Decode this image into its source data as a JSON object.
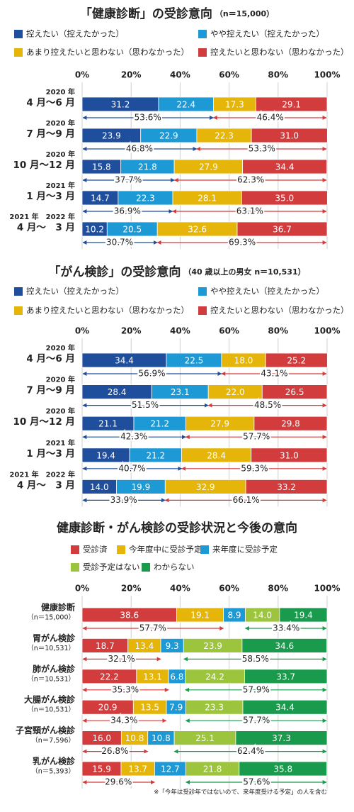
{
  "chart_data": [
    {
      "type": "stacked-bar",
      "title": "「健康診断」の受診意向",
      "subtitle": "（n＝15,000）",
      "categories": [
        [
          "2020 年",
          "4 月〜6 月"
        ],
        [
          "2020 年",
          "7 月〜9 月"
        ],
        [
          "2020 年",
          "10 月〜12 月"
        ],
        [
          "2021 年",
          "1 月〜3 月"
        ],
        [
          "2021 年　2022 年",
          "4 月〜　3 月"
        ]
      ],
      "series": [
        {
          "name": "控えたい（控えたかった）",
          "color": "#1f4e9c",
          "values": [
            31.2,
            23.9,
            15.8,
            14.7,
            10.2
          ]
        },
        {
          "name": "やや控えたい（控えたかった）",
          "color": "#1d9ad6",
          "values": [
            22.4,
            22.9,
            21.8,
            22.3,
            20.5
          ]
        },
        {
          "name": "あまり控えたいと思わない（思わなかった）",
          "color": "#e5b50a",
          "values": [
            17.3,
            22.3,
            27.9,
            28.1,
            32.6
          ]
        },
        {
          "name": "控えたいと思わない（思わなかった）",
          "color": "#d23c3c",
          "values": [
            29.1,
            31,
            34.4,
            35,
            36.7
          ],
          "value_labels": [
            "29.1",
            "31.0",
            "34.4",
            "35.0",
            "36.7"
          ]
        }
      ],
      "left_totals": {
        "values": [
          53.6,
          46.8,
          37.7,
          36.9,
          30.7
        ],
        "value_labels": [
          "53.6%",
          "46.8%",
          "37.7%",
          "36.9%",
          "30.7%"
        ]
      },
      "right_totals": {
        "values": [
          46.4,
          53.3,
          62.3,
          63.1,
          69.3
        ],
        "value_labels": [
          "46.4%",
          "53.3%",
          "62.3%",
          "63.1%",
          "69.3%"
        ]
      },
      "xlim": [
        0,
        100
      ],
      "xticks": [
        {
          "value": 0,
          "label": "0%"
        },
        {
          "value": 20,
          "label": "20%"
        },
        {
          "value": 40,
          "label": "40%"
        },
        {
          "value": 60,
          "label": "60%"
        },
        {
          "value": 80,
          "label": "80%"
        },
        {
          "value": 100,
          "label": "100%"
        }
      ]
    },
    {
      "type": "stacked-bar",
      "title": "「がん検診」の受診意向",
      "subtitle": "（40 歳以上の男女 n＝10,531）",
      "categories": [
        [
          "2020 年",
          "4 月〜6 月"
        ],
        [
          "2020 年",
          "7 月〜9 月"
        ],
        [
          "2020 年",
          "10 月〜12 月"
        ],
        [
          "2021 年",
          "1 月〜3 月"
        ],
        [
          "2021 年　2022 年",
          "4 月〜　3 月"
        ]
      ],
      "series": [
        {
          "name": "控えたい（控えたかった）",
          "color": "#1f4e9c",
          "values": [
            34.4,
            28.4,
            21.1,
            19.4,
            14
          ],
          "value_labels": [
            "34.4",
            "28.4",
            "21.1",
            "19.4",
            "14.0"
          ]
        },
        {
          "name": "やや控えたい（控えたかった）",
          "color": "#1d9ad6",
          "values": [
            22.5,
            23.1,
            21.2,
            21.2,
            19.9
          ]
        },
        {
          "name": "あまり控えたいと思わない（思わなかった）",
          "color": "#e5b50a",
          "values": [
            18,
            22,
            27.9,
            28.4,
            32.9
          ],
          "value_labels": [
            "18.0",
            "22.0",
            "27.9",
            "28.4",
            "32.9"
          ]
        },
        {
          "name": "控えたいと思わない（思わなかった）",
          "color": "#d23c3c",
          "values": [
            25.2,
            26.5,
            29.8,
            31,
            33.2
          ],
          "value_labels": [
            "25.2",
            "26.5",
            "29.8",
            "31.0",
            "33.2"
          ]
        }
      ],
      "left_totals": {
        "values": [
          56.9,
          51.5,
          42.3,
          40.7,
          33.9
        ],
        "value_labels": [
          "56.9%",
          "51.5%",
          "42.3%",
          "40.7%",
          "33.9%"
        ]
      },
      "right_totals": {
        "values": [
          43.1,
          48.5,
          57.7,
          59.3,
          66.1
        ],
        "value_labels": [
          "43.1%",
          "48.5%",
          "57.7%",
          "59.3%",
          "66.1%"
        ]
      },
      "xlim": [
        0,
        100
      ],
      "xticks": [
        {
          "value": 0,
          "label": "0%"
        },
        {
          "value": 20,
          "label": "20%"
        },
        {
          "value": 40,
          "label": "40%"
        },
        {
          "value": 60,
          "label": "60%"
        },
        {
          "value": 80,
          "label": "80%"
        },
        {
          "value": 100,
          "label": "100%"
        }
      ]
    },
    {
      "type": "stacked-bar",
      "title": "健康診断・がん検診の受診状況と今後の意向",
      "categories": [
        [
          "健康診断",
          "（n＝15,000）"
        ],
        [
          "胃がん検診",
          "（n＝10,531）"
        ],
        [
          "肺がん検診",
          "（n＝10,531）"
        ],
        [
          "大腸がん検診",
          "（n＝10,531）"
        ],
        [
          "子宮頸がん検診",
          "（n＝7,596）"
        ],
        [
          "乳がん検診",
          "（n＝5,393）"
        ]
      ],
      "series": [
        {
          "name": "受診済",
          "color": "#d23c3c",
          "values": [
            38.6,
            18.7,
            22.2,
            20.9,
            16,
            15.9
          ],
          "value_labels": [
            "38.6",
            "18.7",
            "22.2",
            "20.9",
            "16.0",
            "15.9"
          ]
        },
        {
          "name": "今年度中に受診予定",
          "color": "#e5b50a",
          "values": [
            19.1,
            13.4,
            13.1,
            13.5,
            10.8,
            13.7
          ]
        },
        {
          "name": "来年度に受診予定",
          "color": "#1d9ad6",
          "values": [
            8.9,
            9.3,
            6.8,
            7.9,
            10.8,
            12.7
          ]
        },
        {
          "name": "受診予定はない",
          "color": "#9cc43c",
          "values": [
            14,
            23.9,
            24.2,
            23.3,
            25.1,
            21.8
          ],
          "value_labels": [
            "14.0",
            "23.9",
            "24.2",
            "23.3",
            "25.1",
            "21.8"
          ]
        },
        {
          "name": "わからない",
          "color": "#1a9a4c",
          "values": [
            19.4,
            34.6,
            33.7,
            34.4,
            37.3,
            35.8
          ]
        }
      ],
      "left_totals": {
        "values": [
          57.7,
          32.1,
          35.3,
          34.3,
          26.8,
          29.6
        ],
        "value_labels": [
          "57.7%",
          "32.1%",
          "35.3%",
          "34.3%",
          "26.8%",
          "29.6%"
        ]
      },
      "right_totals": {
        "values": [
          33.4,
          58.5,
          57.9,
          57.7,
          62.4,
          57.6
        ],
        "value_labels": [
          "33.4%",
          "58.5%",
          "57.9%",
          "57.7%",
          "62.4%",
          "57.6%"
        ]
      },
      "xlim": [
        0,
        100
      ],
      "xticks": [
        {
          "value": 0,
          "label": "0%"
        },
        {
          "value": 20,
          "label": "20%"
        },
        {
          "value": 40,
          "label": "40%"
        },
        {
          "value": 60,
          "label": "60%"
        },
        {
          "value": 80,
          "label": "80%"
        },
        {
          "value": 100,
          "label": "100%"
        }
      ],
      "footnote": "※「今年は受診年ではないので、来年度受ける予定」の人を含む"
    }
  ]
}
